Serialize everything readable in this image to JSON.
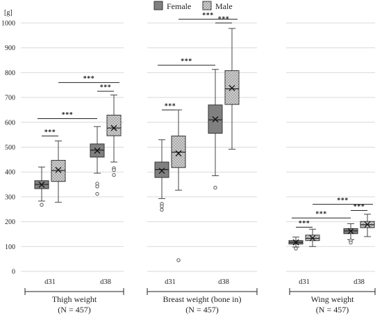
{
  "chart_data": {
    "type": "box",
    "y_unit": "[g]",
    "ylim": [
      0,
      1000
    ],
    "yticks": [
      "0",
      "100",
      "200",
      "300",
      "400",
      "500",
      "600",
      "700",
      "800",
      "900",
      "1000"
    ],
    "grid": true,
    "legend": {
      "position": "top-center",
      "entries": [
        {
          "name": "Female",
          "fill": "#808080",
          "pattern": "solid"
        },
        {
          "name": "Male",
          "fill": "#b0b0b0",
          "pattern": "dotted"
        }
      ]
    },
    "groups": [
      {
        "label": "Thigh weight",
        "n_label": "(N = 457)",
        "categories": [
          {
            "label": "d31",
            "female": {
              "min": 283,
              "q1": 333,
              "median": 350,
              "q3": 365,
              "max": 420,
              "mean": 349,
              "outliers": [
                268
              ]
            },
            "male": {
              "min": 278,
              "q1": 362,
              "median": 406,
              "q3": 447,
              "max": 525,
              "mean": 408,
              "outliers": []
            }
          },
          {
            "label": "d38",
            "female": {
              "min": 395,
              "q1": 460,
              "median": 488,
              "q3": 513,
              "max": 583,
              "mean": 486,
              "outliers": [
                353,
                342,
                312
              ]
            },
            "male": {
              "min": 440,
              "q1": 546,
              "median": 577,
              "q3": 629,
              "max": 710,
              "mean": 577,
              "outliers": [
                415,
                408,
                388
              ]
            }
          }
        ],
        "significance": [
          {
            "label": "***",
            "between": "d31 Female vs d31 Male"
          },
          {
            "label": "***",
            "between": "d38 Female vs d38 Male"
          },
          {
            "label": "***",
            "between": "d31 Female vs d38 Female"
          },
          {
            "label": "***",
            "between": "d31 Male vs d38 Male"
          }
        ]
      },
      {
        "label": "Breast weight (bone in)",
        "n_label": "(N = 457)",
        "categories": [
          {
            "label": "d31",
            "female": {
              "min": 293,
              "q1": 378,
              "median": 410,
              "q3": 440,
              "max": 530,
              "mean": 405,
              "outliers": [
                272,
                262,
                248
              ]
            },
            "male": {
              "min": 327,
              "q1": 418,
              "median": 480,
              "q3": 545,
              "max": 650,
              "mean": 475,
              "outliers": [
                45
              ]
            }
          },
          {
            "label": "d38",
            "female": {
              "min": 385,
              "q1": 556,
              "median": 610,
              "q3": 670,
              "max": 813,
              "mean": 612,
              "outliers": [
                337
              ]
            },
            "male": {
              "min": 492,
              "q1": 672,
              "median": 735,
              "q3": 808,
              "max": 978,
              "mean": 738,
              "outliers": []
            }
          }
        ],
        "significance": [
          {
            "label": "***",
            "between": "d31 Female vs d31 Male"
          },
          {
            "label": "***",
            "between": "d38 Female vs d38 Male"
          },
          {
            "label": "***",
            "between": "d31 Female vs d38 Female"
          },
          {
            "label": "***",
            "between": "d31 Male vs d38 Male"
          }
        ]
      },
      {
        "label": "Wing weight",
        "n_label": "(N = 457)",
        "categories": [
          {
            "label": "d31",
            "female": {
              "min": 98,
              "q1": 110,
              "median": 117,
              "q3": 124,
              "max": 138,
              "mean": 117,
              "outliers": [
                92
              ]
            },
            "male": {
              "min": 100,
              "q1": 124,
              "median": 133,
              "q3": 146,
              "max": 170,
              "mean": 134,
              "outliers": []
            }
          },
          {
            "label": "d38",
            "female": {
              "min": 128,
              "q1": 152,
              "median": 163,
              "q3": 172,
              "max": 192,
              "mean": 162,
              "outliers": [
                124,
                116
              ]
            },
            "male": {
              "min": 140,
              "q1": 176,
              "median": 188,
              "q3": 201,
              "max": 230,
              "mean": 189,
              "outliers": []
            }
          }
        ],
        "significance": [
          {
            "label": "***",
            "between": "d31 Female vs d31 Male"
          },
          {
            "label": "***",
            "between": "d38 Female vs d38 Male"
          },
          {
            "label": "***",
            "between": "d31 Female vs d38 Female"
          },
          {
            "label": "***",
            "between": "d31 Male vs d38 Male"
          }
        ]
      }
    ]
  }
}
